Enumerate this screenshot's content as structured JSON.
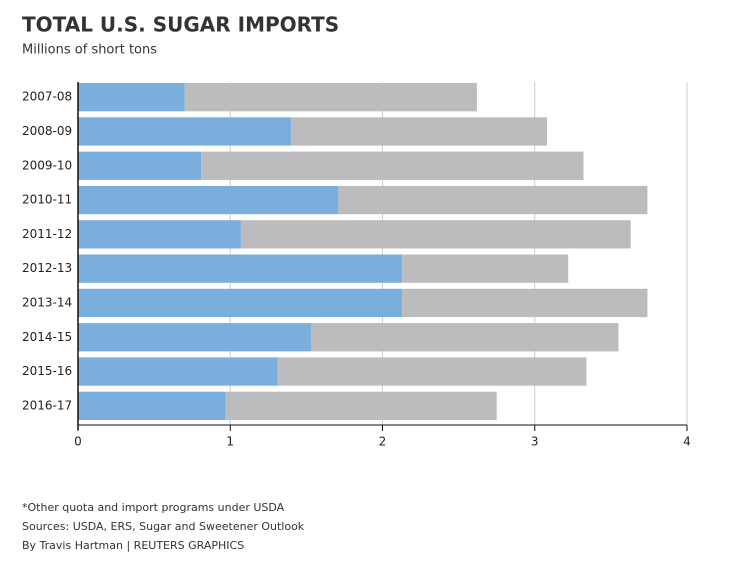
{
  "chart_data": {
    "type": "bar",
    "orientation": "horizontal",
    "stacked": true,
    "title": "TOTAL U.S. SUGAR IMPORTS",
    "subtitle": "Millions of short tons",
    "categories": [
      "2007-08",
      "2008-09",
      "2009-10",
      "2010-11",
      "2011-12",
      "2012-13",
      "2013-14",
      "2014-15",
      "2015-16",
      "2016-17"
    ],
    "series": [
      {
        "color": "#7aaedc",
        "values": [
          0.7,
          1.4,
          0.81,
          1.71,
          1.07,
          2.13,
          2.13,
          1.53,
          1.31,
          0.97
        ]
      },
      {
        "color": "#bcbcbe",
        "values": [
          1.92,
          1.68,
          2.51,
          2.03,
          2.56,
          1.09,
          1.61,
          2.02,
          2.03,
          1.78
        ]
      }
    ],
    "xlim": [
      0,
      4
    ],
    "xticks": [
      0,
      1,
      2,
      3,
      4
    ],
    "grid": true,
    "notes": [
      "*Other quota and import programs under USDA",
      "Sources: USDA, ERS, Sugar and Sweetener Outlook",
      "By Travis Hartman | REUTERS GRAPHICS"
    ]
  }
}
